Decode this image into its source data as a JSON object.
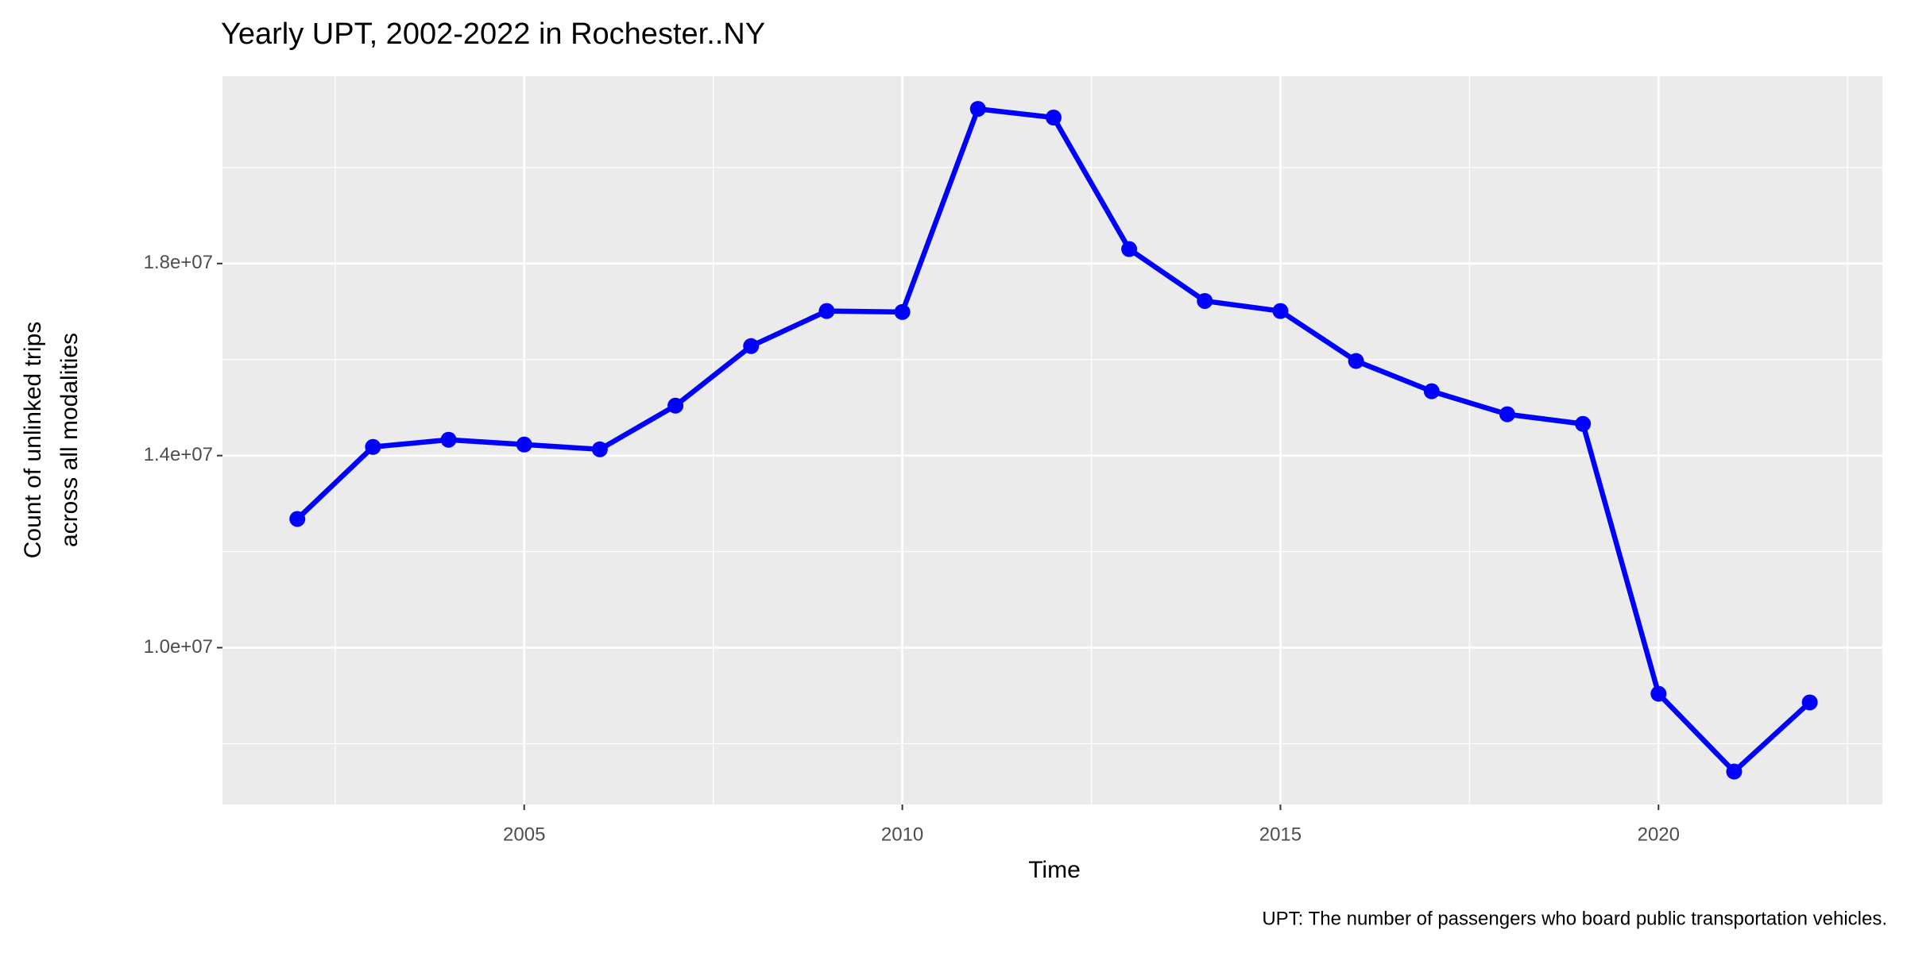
{
  "chart_data": {
    "type": "line",
    "title": "Yearly UPT, 2002-2022 in Rochester..NY",
    "x_label": "Time",
    "y_label": [
      "Count of unlinked trips",
      "across all modalities"
    ],
    "caption": "UPT: The number of passengers who board public transportation vehicles.",
    "x": [
      2002,
      2003,
      2004,
      2005,
      2006,
      2007,
      2008,
      2009,
      2010,
      2011,
      2012,
      2013,
      2014,
      2015,
      2016,
      2017,
      2018,
      2019,
      2020,
      2021,
      2022
    ],
    "series": [
      {
        "color": "#0000ff",
        "values": [
          12680000,
          14180000,
          14330000,
          14230000,
          14130000,
          15040000,
          16280000,
          17010000,
          16990000,
          21220000,
          21040000,
          18300000,
          17220000,
          17010000,
          15970000,
          15340000,
          14860000,
          14660000,
          9040000,
          7420000,
          8860000
        ]
      }
    ],
    "xlim": [
      2001.01,
      2022.96
    ],
    "ylim": [
      6734000,
      21900000
    ],
    "xticks": [
      2005,
      2010,
      2015,
      2020
    ],
    "yticks": [
      {
        "value": 10000000,
        "label": "1.0e+07"
      },
      {
        "value": 14000000,
        "label": "1.4e+07"
      },
      {
        "value": 18000000,
        "label": "1.8e+07"
      }
    ],
    "grid": true
  }
}
